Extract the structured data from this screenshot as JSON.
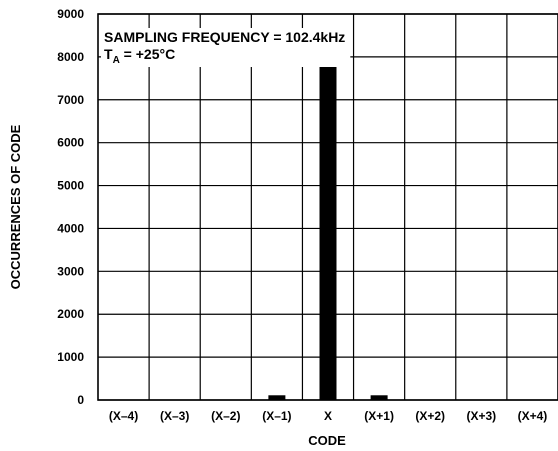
{
  "chart_data": {
    "type": "bar",
    "title": "",
    "xlabel": "CODE",
    "ylabel": "OCCURRENCES OF CODE",
    "categories": [
      "(X–4)",
      "(X–3)",
      "(X–2)",
      "(X–1)",
      "X",
      "(X+1)",
      "(X+2)",
      "(X+3)",
      "(X+4)"
    ],
    "values": [
      0,
      0,
      0,
      110,
      8050,
      110,
      0,
      0,
      0
    ],
    "ylim": [
      0,
      9000
    ],
    "yticks": [
      "0",
      "1000",
      "2000",
      "3000",
      "4000",
      "5000",
      "6000",
      "7000",
      "8000",
      "9000"
    ],
    "grid": "on",
    "bar_color": "#000000",
    "annotations": {
      "line1": "SAMPLING FREQUENCY = 102.4kHz",
      "line2_prefix": "T",
      "line2_sub": "A",
      "line2_rest": " = +25°C"
    }
  }
}
